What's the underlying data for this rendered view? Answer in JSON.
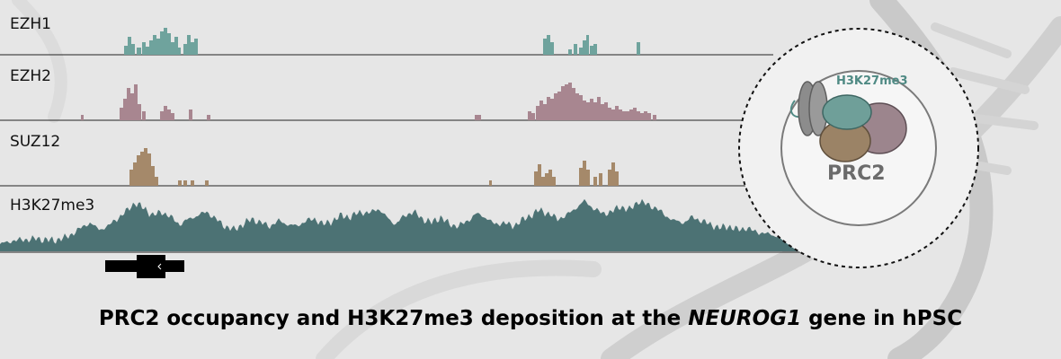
{
  "tracks": [
    {
      "label": "EZH1",
      "color": "#6fa39d"
    },
    {
      "label": "EZH2",
      "color": "#a88690"
    },
    {
      "label": "SUZ12",
      "color": "#a5896a"
    },
    {
      "label": "H3K27me3",
      "color": "#4c7274"
    }
  ],
  "inset": {
    "mark_label": "H3K27me3",
    "complex_label": "PRC2",
    "colors": {
      "teal": "#6f9f99",
      "mauve": "#9c858d",
      "brown": "#9b8366",
      "nucleosome": "#8c8c8c"
    }
  },
  "caption": {
    "before": "PRC2 occupancy and H3K27me3 deposition at the ",
    "gene": "NEUROG1",
    "after": " gene in  hPSC"
  }
}
